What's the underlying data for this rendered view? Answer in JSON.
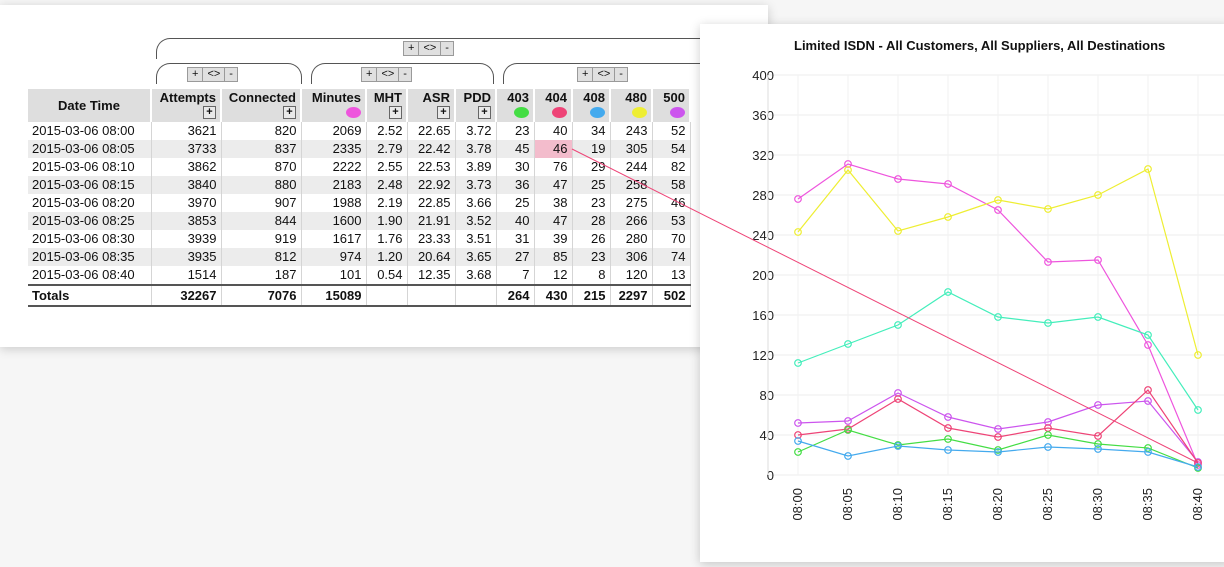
{
  "group_controls": {
    "add": "+",
    "toggle": "<>",
    "remove": "-"
  },
  "columns": {
    "datetime": "Date Time",
    "attempts": "Attempts",
    "connected": "Connected",
    "minutes": "Minutes",
    "mht": "MHT",
    "asr": "ASR",
    "pdd": "PDD",
    "c403": "403",
    "c404": "404",
    "c408": "408",
    "c480": "480",
    "c500": "500",
    "add_button": "+"
  },
  "series_colors": {
    "minutes": "#ee55dd",
    "c403": "#44dd44",
    "c404": "#ee4477",
    "c408": "#44aaee",
    "c480": "#eeee33",
    "c500": "#cc55ee",
    "asr": "#44eebb"
  },
  "rows": [
    {
      "datetime": "2015-03-06 08:00",
      "attempts": "3621",
      "connected": "820",
      "minutes": "2069",
      "mht": "2.52",
      "asr": "22.65",
      "pdd": "3.72",
      "c403": "23",
      "c404": "40",
      "c408": "34",
      "c480": "243",
      "c500": "52"
    },
    {
      "datetime": "2015-03-06 08:05",
      "attempts": "3733",
      "connected": "837",
      "minutes": "2335",
      "mht": "2.79",
      "asr": "22.42",
      "pdd": "3.78",
      "c403": "45",
      "c404": "46",
      "c408": "19",
      "c480": "305",
      "c500": "54"
    },
    {
      "datetime": "2015-03-06 08:10",
      "attempts": "3862",
      "connected": "870",
      "minutes": "2222",
      "mht": "2.55",
      "asr": "22.53",
      "pdd": "3.89",
      "c403": "30",
      "c404": "76",
      "c408": "29",
      "c480": "244",
      "c500": "82"
    },
    {
      "datetime": "2015-03-06 08:15",
      "attempts": "3840",
      "connected": "880",
      "minutes": "2183",
      "mht": "2.48",
      "asr": "22.92",
      "pdd": "3.73",
      "c403": "36",
      "c404": "47",
      "c408": "25",
      "c480": "258",
      "c500": "58"
    },
    {
      "datetime": "2015-03-06 08:20",
      "attempts": "3970",
      "connected": "907",
      "minutes": "1988",
      "mht": "2.19",
      "asr": "22.85",
      "pdd": "3.66",
      "c403": "25",
      "c404": "38",
      "c408": "23",
      "c480": "275",
      "c500": "46"
    },
    {
      "datetime": "2015-03-06 08:25",
      "attempts": "3853",
      "connected": "844",
      "minutes": "1600",
      "mht": "1.90",
      "asr": "21.91",
      "pdd": "3.52",
      "c403": "40",
      "c404": "47",
      "c408": "28",
      "c480": "266",
      "c500": "53"
    },
    {
      "datetime": "2015-03-06 08:30",
      "attempts": "3939",
      "connected": "919",
      "minutes": "1617",
      "mht": "1.76",
      "asr": "23.33",
      "pdd": "3.51",
      "c403": "31",
      "c404": "39",
      "c408": "26",
      "c480": "280",
      "c500": "70"
    },
    {
      "datetime": "2015-03-06 08:35",
      "attempts": "3935",
      "connected": "812",
      "minutes": "974",
      "mht": "1.20",
      "asr": "20.64",
      "pdd": "3.65",
      "c403": "27",
      "c404": "85",
      "c408": "23",
      "c480": "306",
      "c500": "74"
    },
    {
      "datetime": "2015-03-06 08:40",
      "attempts": "1514",
      "connected": "187",
      "minutes": "101",
      "mht": "0.54",
      "asr": "12.35",
      "pdd": "3.68",
      "c403": "7",
      "c404": "12",
      "c408": "8",
      "c480": "120",
      "c500": "13"
    }
  ],
  "totals": {
    "label": "Totals",
    "attempts": "32267",
    "connected": "7076",
    "minutes": "15089",
    "c403": "264",
    "c404": "430",
    "c408": "215",
    "c480": "2297",
    "c500": "502"
  },
  "highlighted_cell": {
    "row": 1,
    "column": "c404"
  },
  "chart_data": {
    "type": "line",
    "title": "Limited ISDN - All Customers, All Suppliers, All Destinations",
    "categories": [
      "08:00",
      "08:05",
      "08:10",
      "08:15",
      "08:20",
      "08:25",
      "08:30",
      "08:35",
      "08:40"
    ],
    "ylim": [
      0,
      400
    ],
    "yticks": [
      0,
      40,
      80,
      120,
      160,
      200,
      240,
      280,
      320,
      360,
      400
    ],
    "grid": true,
    "series": [
      {
        "name": "Minutes",
        "color": "#ee55dd",
        "values": [
          276,
          311,
          296,
          291,
          265,
          213,
          215,
          130,
          10
        ]
      },
      {
        "name": "480",
        "color": "#eeee33",
        "values": [
          243,
          305,
          244,
          258,
          275,
          266,
          280,
          306,
          120
        ]
      },
      {
        "name": "ASR",
        "color": "#44eebb",
        "values": [
          112,
          131,
          150,
          183,
          158,
          152,
          158,
          140,
          65
        ]
      },
      {
        "name": "500",
        "color": "#cc55ee",
        "values": [
          52,
          54,
          82,
          58,
          46,
          53,
          70,
          74,
          13
        ]
      },
      {
        "name": "404",
        "color": "#ee4477",
        "values": [
          40,
          46,
          76,
          47,
          38,
          47,
          39,
          85,
          12
        ]
      },
      {
        "name": "403",
        "color": "#44dd44",
        "values": [
          23,
          45,
          30,
          36,
          25,
          40,
          31,
          27,
          7
        ]
      },
      {
        "name": "408",
        "color": "#44aaee",
        "values": [
          34,
          19,
          29,
          25,
          23,
          28,
          26,
          23,
          8
        ]
      }
    ]
  }
}
